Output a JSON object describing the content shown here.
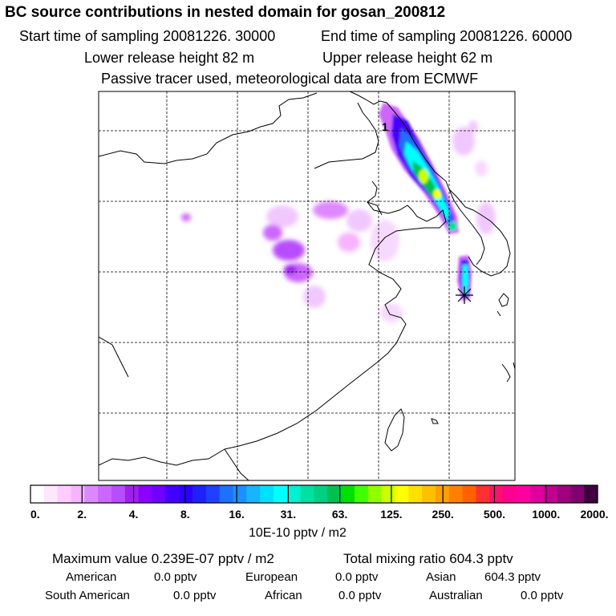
{
  "header": {
    "title": "BC  source contributions in nested domain for gosan_200812",
    "start_time": "Start time of sampling 20081226. 30000",
    "end_time": "End time of sampling 20081226. 60000",
    "lower_release": "Lower release height   82 m",
    "upper_release": "Upper release height   62 m",
    "tracer_note": "Passive tracer used, meteorological data are from ECMWF"
  },
  "map": {
    "contour_label": "1"
  },
  "chart_data": {
    "type": "heatmap",
    "title": "BC  source contributions in nested domain for gosan_200812",
    "units": "10E-10 pptv / m2",
    "colorbar_ticks": [
      "0.",
      "2.",
      "4.",
      "8.",
      "16.",
      "31.",
      "63.",
      "125.",
      "250.",
      "500.",
      "1000.",
      "2000."
    ],
    "colorbar_colors": [
      "#ffffff",
      "#ffe6ff",
      "#ffccff",
      "#f7b3ff",
      "#dd88ff",
      "#cc66ff",
      "#b84dff",
      "#a020f0",
      "#8c00ff",
      "#7000ff",
      "#4400ff",
      "#2a00ff",
      "#2020ff",
      "#2040ff",
      "#1e70ff",
      "#1a90ff",
      "#18b4ff",
      "#00e0ff",
      "#00ffff",
      "#00f0d0",
      "#00e0a0",
      "#00d080",
      "#00c050",
      "#00e000",
      "#40ff00",
      "#90ff00",
      "#ccff00",
      "#ffff00",
      "#ffe000",
      "#ffc000",
      "#ffa000",
      "#ff8000",
      "#ff6000",
      "#ff3030",
      "#ff1070",
      "#ff0090",
      "#ff00a0",
      "#e000a0",
      "#c00090",
      "#a00080",
      "#800070",
      "#400040"
    ],
    "grid": true,
    "receptor": "gosan"
  },
  "stats": {
    "max_label": "Maximum value  0.239E-07 pptv / m2",
    "total_label": "Total mixing ratio      604.3 pptv",
    "american": "American",
    "american_val": "0.0 pptv",
    "european": "European",
    "european_val": "0.0 pptv",
    "asian": "Asian",
    "asian_val": "604.3 pptv",
    "south_american": "South American",
    "south_american_val": "0.0 pptv",
    "african": "African",
    "african_val": "0.0 pptv",
    "australian": "Australian",
    "australian_val": "0.0 pptv"
  }
}
